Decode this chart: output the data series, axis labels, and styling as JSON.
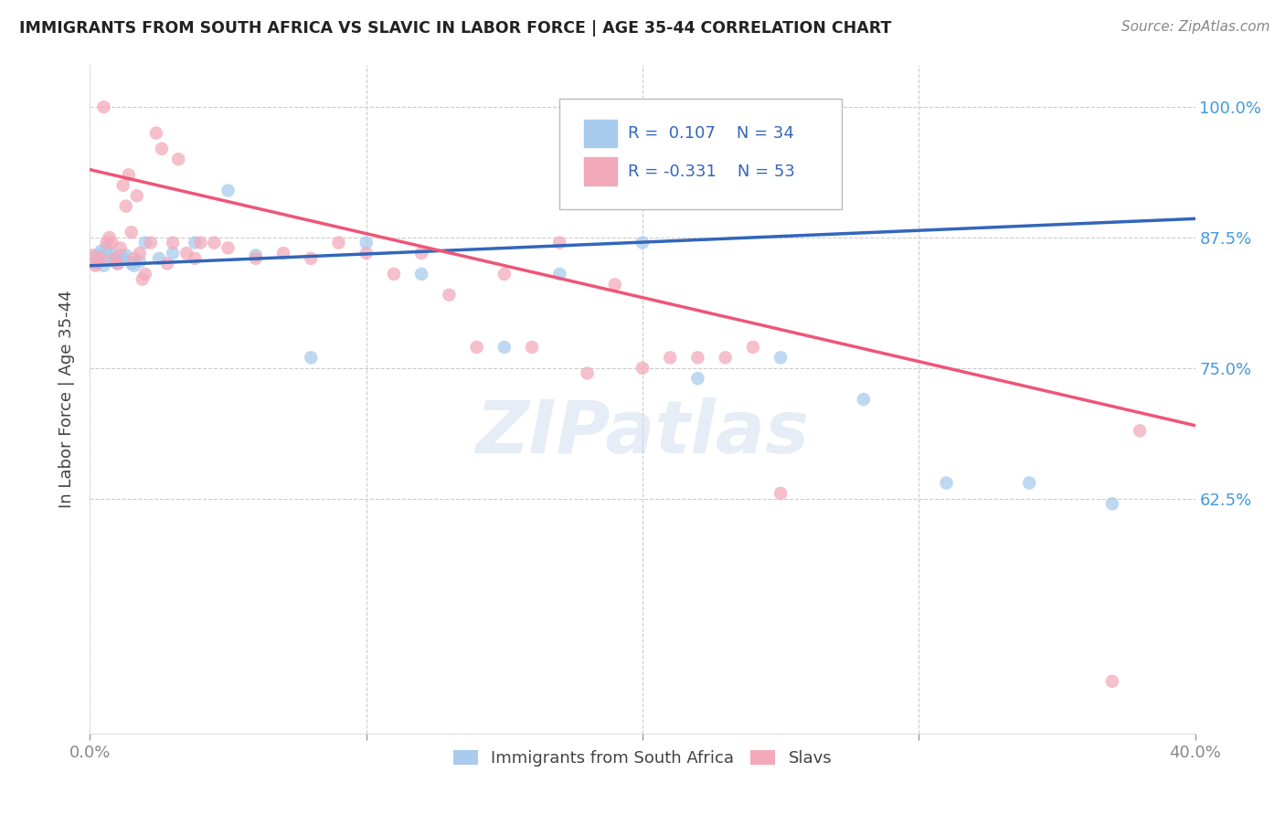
{
  "title": "IMMIGRANTS FROM SOUTH AFRICA VS SLAVIC IN LABOR FORCE | AGE 35-44 CORRELATION CHART",
  "source": "Source: ZipAtlas.com",
  "ylabel": "In Labor Force | Age 35-44",
  "xlim": [
    0.0,
    0.4
  ],
  "ylim": [
    0.4,
    1.04
  ],
  "yticks": [
    0.625,
    0.75,
    0.875,
    1.0
  ],
  "ytick_labels": [
    "62.5%",
    "75.0%",
    "87.5%",
    "100.0%"
  ],
  "xticks": [
    0.0,
    0.1,
    0.2,
    0.3,
    0.4
  ],
  "xtick_labels": [
    "0.0%",
    "",
    "",
    "",
    "40.0%"
  ],
  "blue_color": "#A8CBEE",
  "pink_color": "#F2AABB",
  "line_blue": "#3366BB",
  "line_pink": "#EE5577",
  "watermark": "ZIPatlas",
  "blue_scatter_x": [
    0.001,
    0.002,
    0.003,
    0.004,
    0.005,
    0.006,
    0.007,
    0.008,
    0.009,
    0.01,
    0.011,
    0.012,
    0.013,
    0.015,
    0.016,
    0.018,
    0.02,
    0.025,
    0.03,
    0.038,
    0.05,
    0.06,
    0.08,
    0.1,
    0.12,
    0.15,
    0.17,
    0.2,
    0.22,
    0.25,
    0.28,
    0.31,
    0.34,
    0.37
  ],
  "blue_scatter_y": [
    0.855,
    0.85,
    0.858,
    0.862,
    0.848,
    0.865,
    0.86,
    0.855,
    0.852,
    0.85,
    0.858,
    0.855,
    0.858,
    0.85,
    0.848,
    0.852,
    0.87,
    0.855,
    0.86,
    0.87,
    0.92,
    0.858,
    0.76,
    0.87,
    0.84,
    0.77,
    0.84,
    0.87,
    0.74,
    0.76,
    0.72,
    0.64,
    0.64,
    0.62
  ],
  "pink_scatter_x": [
    0.001,
    0.002,
    0.003,
    0.004,
    0.005,
    0.006,
    0.007,
    0.008,
    0.009,
    0.01,
    0.011,
    0.012,
    0.013,
    0.014,
    0.015,
    0.016,
    0.017,
    0.018,
    0.019,
    0.02,
    0.022,
    0.024,
    0.026,
    0.028,
    0.03,
    0.032,
    0.035,
    0.038,
    0.04,
    0.045,
    0.05,
    0.06,
    0.07,
    0.08,
    0.09,
    0.1,
    0.11,
    0.12,
    0.13,
    0.14,
    0.15,
    0.16,
    0.17,
    0.18,
    0.19,
    0.2,
    0.21,
    0.22,
    0.23,
    0.24,
    0.25,
    0.38,
    0.37
  ],
  "pink_scatter_y": [
    0.858,
    0.848,
    0.852,
    0.855,
    1.0,
    0.87,
    0.875,
    0.87,
    0.855,
    0.85,
    0.865,
    0.925,
    0.905,
    0.935,
    0.88,
    0.855,
    0.915,
    0.86,
    0.835,
    0.84,
    0.87,
    0.975,
    0.96,
    0.85,
    0.87,
    0.95,
    0.86,
    0.855,
    0.87,
    0.87,
    0.865,
    0.855,
    0.86,
    0.855,
    0.87,
    0.86,
    0.84,
    0.86,
    0.82,
    0.77,
    0.84,
    0.77,
    0.87,
    0.745,
    0.83,
    0.75,
    0.76,
    0.76,
    0.76,
    0.77,
    0.63,
    0.69,
    0.45
  ],
  "blue_line_x": [
    0.0,
    0.4
  ],
  "blue_line_y": [
    0.848,
    0.893
  ],
  "pink_line_x": [
    0.0,
    0.4
  ],
  "pink_line_y": [
    0.94,
    0.695
  ]
}
